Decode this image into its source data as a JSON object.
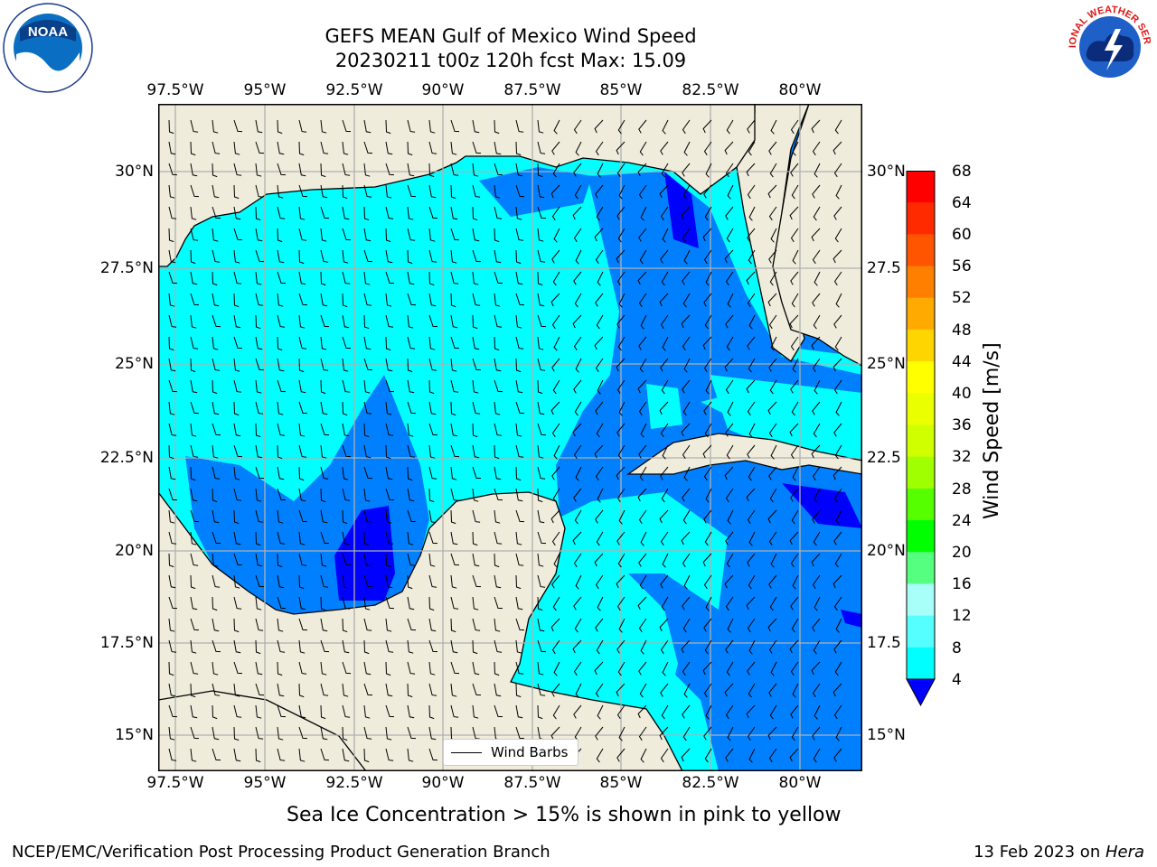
{
  "title": {
    "line1": "GEFS MEAN Gulf of Mexico Wind Speed",
    "line2": "20230211 t00z 120h fcst   Max: 15.09"
  },
  "logos": {
    "noaa_text": "NOAA",
    "nws_text": "NATIONAL WEATHER SERVICE"
  },
  "map": {
    "lon_ticks": [
      "97.5°W",
      "95°W",
      "92.5°W",
      "90°W",
      "87.5°W",
      "85°W",
      "82.5°W",
      "80°W"
    ],
    "lat_ticks": [
      "30°N",
      "27.5°N",
      "25°N",
      "22.5°N",
      "20°N",
      "17.5°N",
      "15°N"
    ],
    "lat_ticks_right": [
      "30°N",
      "27.5",
      "25°N",
      "22.5",
      "20°N",
      "17.5",
      "15°N"
    ],
    "legend_label": "Wind Barbs",
    "colors": {
      "land": "#efecdc",
      "ocean_base": "#00ffff",
      "grid": "#b0b0b0"
    }
  },
  "colorbar": {
    "label": "Wind Speed [m/s]",
    "ticks": [
      "68",
      "64",
      "60",
      "56",
      "52",
      "48",
      "44",
      "40",
      "36",
      "32",
      "28",
      "24",
      "20",
      "16",
      "12",
      "8",
      "4"
    ],
    "colors": [
      "#ff0000",
      "#ff2a00",
      "#ff5500",
      "#ff8000",
      "#ffaa00",
      "#ffd500",
      "#ffff00",
      "#eaff00",
      "#d0ff00",
      "#a0ff00",
      "#55ff00",
      "#00ff00",
      "#55ff80",
      "#a8fffa",
      "#55ffff",
      "#00ffff",
      "#0080ff"
    ],
    "under_color": "#0000ff"
  },
  "note": "Sea Ice Concentration > 15% is shown in pink to yellow",
  "footer": {
    "left": "NCEP/EMC/Verification Post Processing Product Generation Branch",
    "right_prefix": "13 Feb 2023 on ",
    "right_host": "Hera"
  }
}
